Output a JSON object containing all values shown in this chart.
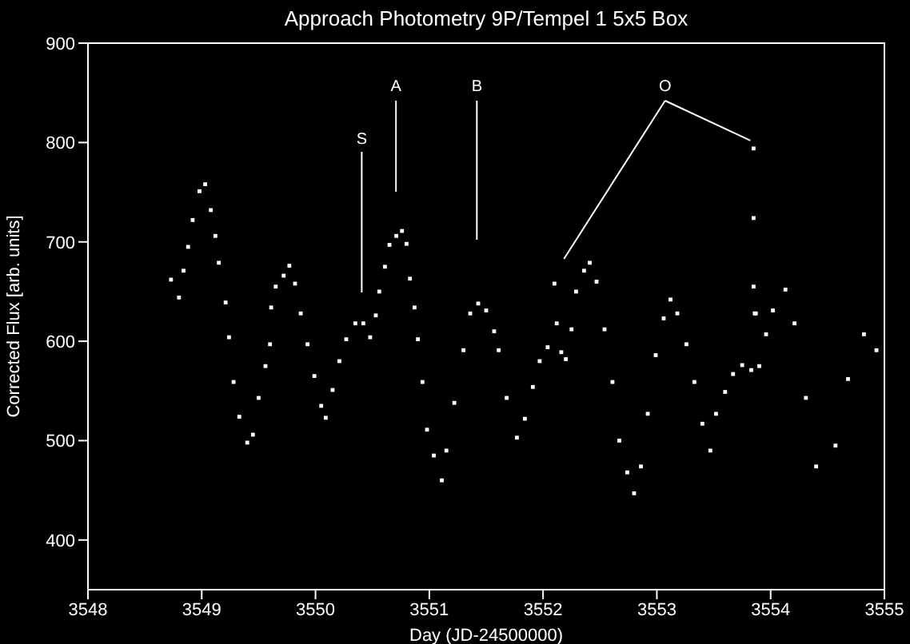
{
  "chart_data": {
    "type": "scatter",
    "title": "Approach Photometry 9P/Tempel 1 5x5 Box",
    "xlabel": "Day (JD-24500000)",
    "ylabel": "Corrected Flux [arb. units]",
    "x": [
      3548.73,
      3548.8,
      3548.84,
      3548.88,
      3548.92,
      3548.98,
      3549.03,
      3549.08,
      3549.12,
      3549.15,
      3549.21,
      3549.24,
      3549.28,
      3549.33,
      3549.4,
      3549.45,
      3549.5,
      3549.56,
      3549.6,
      3549.61,
      3549.65,
      3549.72,
      3549.77,
      3549.82,
      3549.87,
      3549.93,
      3549.99,
      3550.05,
      3550.09,
      3550.15,
      3550.21,
      3550.27,
      3550.35,
      3550.42,
      3550.48,
      3550.53,
      3550.56,
      3550.61,
      3550.65,
      3550.71,
      3550.76,
      3550.8,
      3550.83,
      3550.87,
      3550.9,
      3550.94,
      3550.98,
      3551.04,
      3551.11,
      3551.15,
      3551.22,
      3551.3,
      3551.36,
      3551.43,
      3551.5,
      3551.57,
      3551.61,
      3551.68,
      3551.77,
      3551.84,
      3551.91,
      3551.97,
      3552.04,
      3552.1,
      3552.12,
      3552.16,
      3552.2,
      3552.25,
      3552.29,
      3552.36,
      3552.41,
      3552.47,
      3552.54,
      3552.61,
      3552.67,
      3552.74,
      3552.8,
      3552.86,
      3552.92,
      3552.99,
      3553.06,
      3553.12,
      3553.18,
      3553.26,
      3553.33,
      3553.4,
      3553.47,
      3553.52,
      3553.6,
      3553.67,
      3553.75,
      3553.83,
      3553.85,
      3553.85,
      3553.85,
      3553.86,
      3553.87,
      3553.9,
      3553.96,
      3554.02,
      3554.13,
      3554.21,
      3554.31,
      3554.4,
      3554.57,
      3554.68,
      3554.82,
      3554.93
    ],
    "series": [
      {
        "color": "#ffffff",
        "values": [
          662,
          644,
          671,
          695,
          722,
          751,
          758,
          732,
          706,
          679,
          639,
          604,
          559,
          524,
          498,
          506,
          543,
          575,
          597,
          634,
          655,
          666,
          676,
          658,
          628,
          597,
          565,
          535,
          523,
          551,
          580,
          602,
          618,
          618,
          604,
          626,
          650,
          675,
          697,
          706,
          711,
          698,
          663,
          634,
          602,
          559,
          511,
          485,
          460,
          490,
          538,
          591,
          628,
          638,
          631,
          610,
          591,
          543,
          503,
          522,
          554,
          580,
          594,
          658,
          618,
          589,
          582,
          612,
          650,
          671,
          679,
          660,
          612,
          559,
          500,
          468,
          447,
          474,
          527,
          586,
          623,
          642,
          628,
          597,
          559,
          517,
          490,
          527,
          549,
          567,
          576,
          571,
          794,
          724,
          655,
          628,
          628,
          575,
          607,
          631,
          652,
          618,
          543,
          474,
          495,
          562,
          607,
          591
        ]
      }
    ],
    "xlim": [
      3548,
      3555
    ],
    "xticks": [
      3548,
      3549,
      3550,
      3551,
      3552,
      3553,
      3554,
      3555
    ],
    "ylim": [
      350,
      900
    ],
    "yticks": [
      400,
      500,
      600,
      700,
      800,
      900
    ],
    "grid": false,
    "legend": false,
    "marker": "square",
    "annotations": [
      "S",
      "A",
      "B",
      {
        "text": "O",
        "x": 3553.85,
        "y": 794
      }
    ]
  }
}
